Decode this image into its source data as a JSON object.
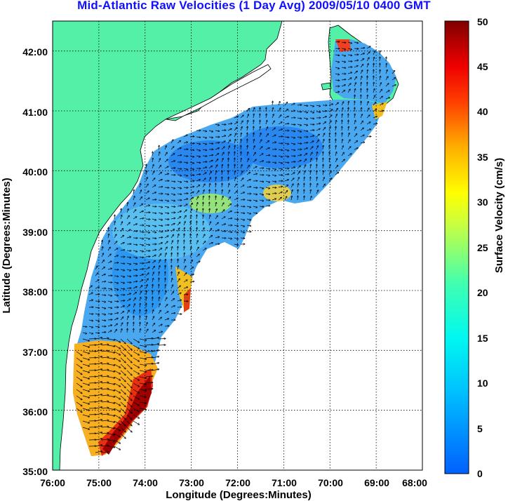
{
  "title": "Mid-Atlantic Raw Velocities (1 Day Avg) 2009/05/10 0400 GMT",
  "xlabel": "Longitude (Degrees:Minutes)",
  "ylabel": "Latitude (Degrees:Minutes)",
  "colorbar_label": "Surface Velocity (cm/s)",
  "x_ticks": [
    "76:00",
    "75:00",
    "74:00",
    "73:00",
    "72:00",
    "71:00",
    "70:00",
    "69:00",
    "68:00"
  ],
  "y_ticks": [
    "35:00",
    "36:00",
    "37:00",
    "38:00",
    "39:00",
    "40:00",
    "41:00",
    "42:00"
  ],
  "cbar_ticks": [
    "0",
    "5",
    "10",
    "15",
    "20",
    "25",
    "30",
    "35",
    "40",
    "45",
    "50"
  ],
  "colors": {
    "land": "#55f0a8",
    "title": "#1010ff"
  },
  "chart_data": {
    "type": "heatmap",
    "title": "Mid-Atlantic Raw Velocities (1 Day Avg) 2009/05/10 0400 GMT",
    "xlabel": "Longitude (Degrees:Minutes)",
    "ylabel": "Latitude (Degrees:Minutes)",
    "xlim": [
      -76,
      -68
    ],
    "ylim": [
      35,
      42.5
    ],
    "grid": true,
    "colorbar": {
      "label": "Surface Velocity (cm/s)",
      "range": [
        0,
        50
      ]
    }
  }
}
